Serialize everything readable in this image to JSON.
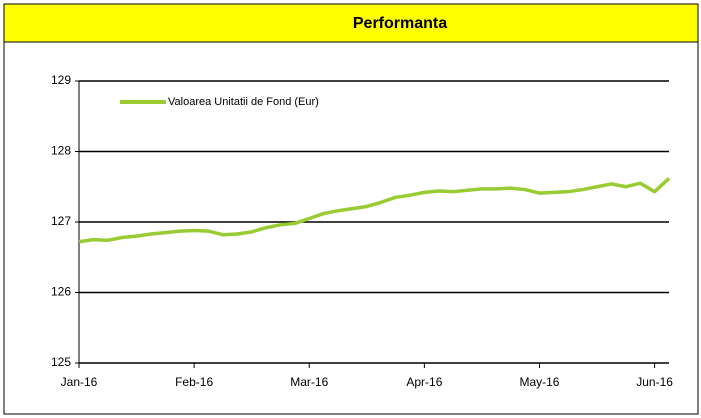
{
  "chart_data": {
    "type": "line",
    "title": "Performanta",
    "categories": [
      "Jan-16",
      null,
      null,
      null,
      null,
      null,
      null,
      null,
      "Feb-16",
      null,
      null,
      null,
      null,
      null,
      null,
      null,
      "Mar-16",
      null,
      null,
      null,
      null,
      null,
      null,
      null,
      "Apr-16",
      null,
      null,
      null,
      null,
      null,
      null,
      null,
      "May-16",
      null,
      null,
      null,
      null,
      null,
      null,
      null,
      "Jun-16",
      null
    ],
    "series": [
      {
        "name": "Valoarea Unitatii de Fond (Eur)",
        "color": "#99cc33",
        "values": [
          126.72,
          126.75,
          126.74,
          126.78,
          126.8,
          126.83,
          126.85,
          126.87,
          126.88,
          126.87,
          126.82,
          126.83,
          126.86,
          126.92,
          126.96,
          126.98,
          127.05,
          127.12,
          127.16,
          127.19,
          127.22,
          127.28,
          127.35,
          127.38,
          127.42,
          127.44,
          127.43,
          127.45,
          127.47,
          127.47,
          127.48,
          127.46,
          127.41,
          127.42,
          127.43,
          127.46,
          127.5,
          127.54,
          127.5,
          127.55,
          127.43,
          127.62
        ]
      }
    ],
    "ylim": [
      125,
      129
    ],
    "yticks": [
      125,
      126,
      127,
      128,
      129
    ],
    "grid": true,
    "legend": "upper left"
  }
}
